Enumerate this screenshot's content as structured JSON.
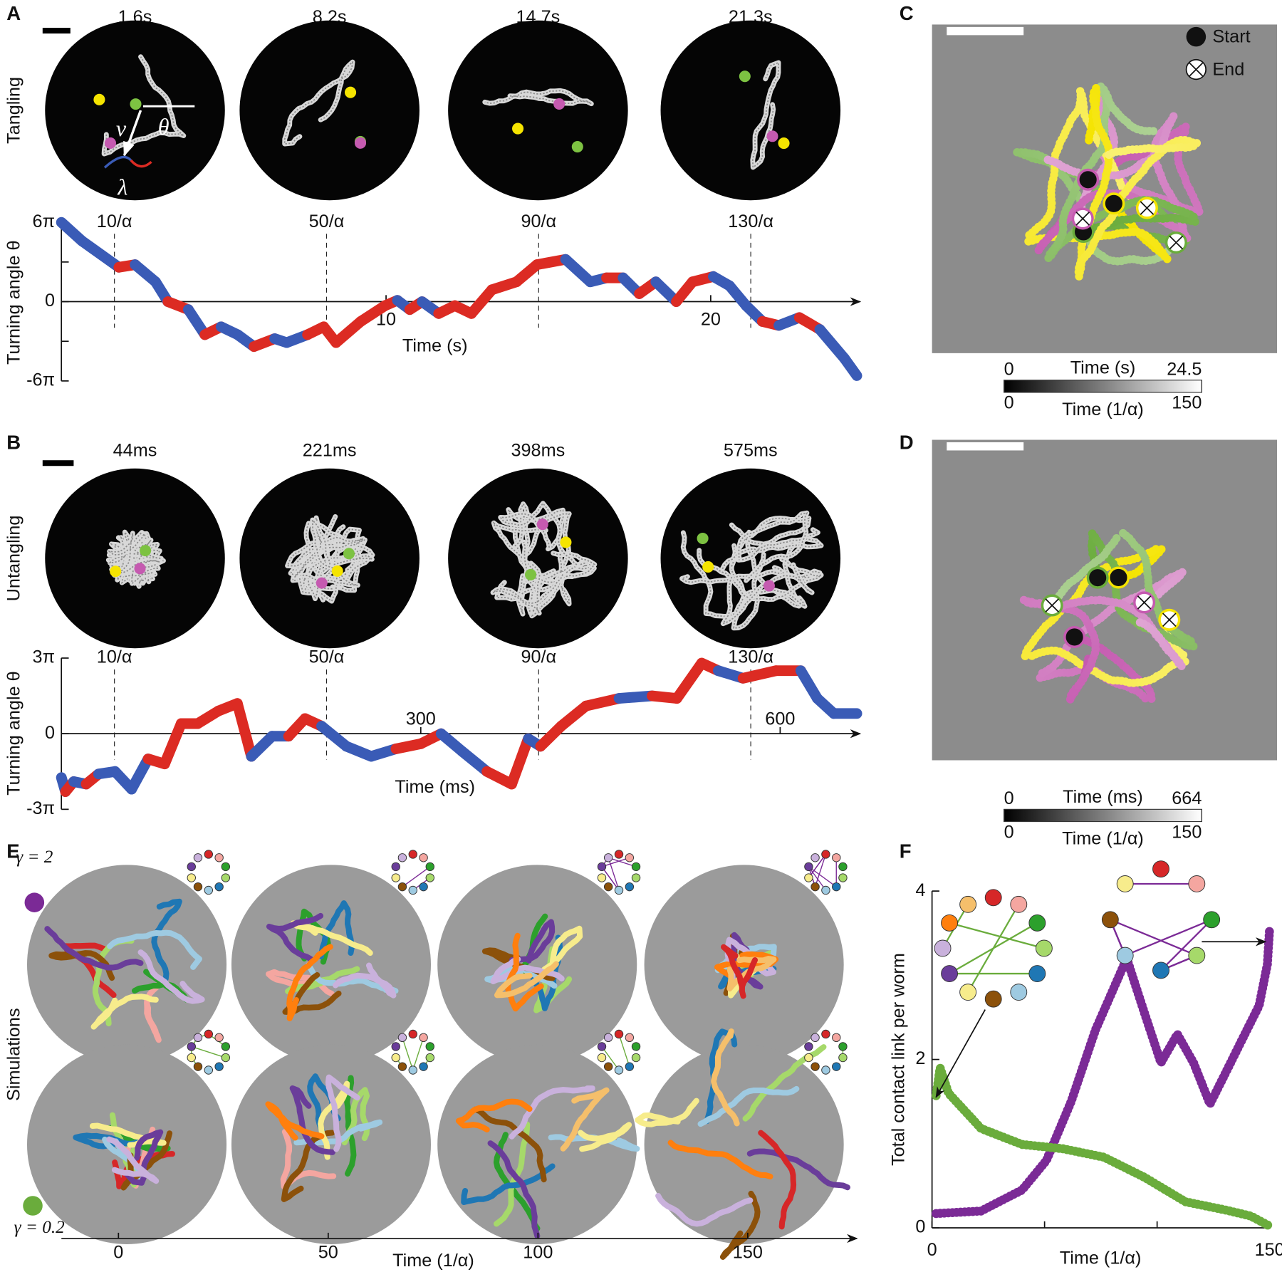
{
  "panel_labels": [
    "A",
    "B",
    "C",
    "D",
    "E",
    "F"
  ],
  "panel_a": {
    "row_label": "Tangling",
    "frame_times": [
      "1.6s",
      "8.2s",
      "14.7s",
      "21.3s"
    ],
    "symbols": [
      "v",
      "θ",
      "λ"
    ]
  },
  "panel_b": {
    "row_label": "Untangling",
    "frame_times": [
      "44ms",
      "221ms",
      "398ms",
      "575ms"
    ]
  },
  "panel_c": {
    "legend": [
      "Start",
      "End"
    ],
    "colorbar": {
      "top_label": "Time (s)",
      "top_ticks": [
        0,
        24.5
      ],
      "bottom_label": "Time (1/α)",
      "bottom_ticks": [
        0,
        150
      ]
    }
  },
  "panel_d": {
    "colorbar": {
      "top_label": "Time (ms)",
      "top_ticks": [
        0,
        664
      ],
      "bottom_label": "Time (1/α)",
      "bottom_ticks": [
        0,
        150
      ]
    }
  },
  "panel_e": {
    "row_label": "Simulations",
    "gamma_labels": [
      "γ = 2",
      "γ = 0.2"
    ],
    "xlabel": "Time (1/α)",
    "xlim": [
      -13.6,
      176
    ],
    "xticks": [
      0,
      50,
      100,
      150
    ]
  },
  "chart_data": [
    {
      "type": "line",
      "xlabel": "Time (s)",
      "ylabel": "Turning angle θ",
      "xlim": [
        0,
        24.5
      ],
      "xticks": [
        10,
        20
      ],
      "ylim": [
        -6,
        6
      ],
      "yticks": [
        {
          "value": -6,
          "label": "-6π"
        },
        0,
        {
          "value": 6,
          "label": "6π"
        }
      ],
      "minor_yticks": [
        -3,
        3
      ],
      "x2lim": [
        0,
        150
      ],
      "x2ticks": [
        {
          "value": 10,
          "label": "10/α"
        },
        {
          "value": 50,
          "label": "50/α"
        },
        {
          "value": 90,
          "label": "90/α"
        },
        {
          "value": 130,
          "label": "130/α"
        }
      ],
      "x": [
        0,
        0.63,
        1.77,
        2.27,
        2.9,
        3.28,
        3.91,
        4.42,
        4.92,
        5.43,
        5.93,
        6.57,
        6.94,
        7.58,
        8.08,
        8.46,
        9.22,
        9.97,
        10.35,
        10.73,
        11.11,
        11.62,
        12.12,
        12.63,
        13.26,
        14.02,
        14.65,
        15.53,
        16.29,
        16.79,
        17.3,
        17.8,
        18.31,
        18.94,
        19.44,
        20.08,
        20.58,
        21.09,
        21.59,
        22.1,
        22.73,
        23.36,
        24.12,
        24.5
      ],
      "series": [
        {
          "values": [
            6.0,
            4.6,
            2.6,
            2.8,
            1.5,
            0,
            -0.6,
            -2.5,
            -1.9,
            -2.5,
            -3.4,
            -2.8,
            -3.1,
            -2.5,
            -1.9,
            -3.1,
            -1.5,
            -0.3,
            0.1,
            -0.6,
            0,
            -0.9,
            -0.3,
            -0.9,
            0.9,
            1.5,
            2.8,
            3.2,
            1.5,
            1.8,
            1.8,
            0.6,
            1.5,
            0,
            1.5,
            1.9,
            1.2,
            -0.3,
            -1.5,
            -1.8,
            -1.2,
            -2.1,
            -4.3,
            -5.6
          ],
          "colors": [
            "#3a5bb6",
            "#3a5bb6",
            "#dc2b23",
            "#3a5bb6",
            "#3a5bb6",
            "#dc2b23",
            "#3a5bb6",
            "#dc2b23",
            "#3a5bb6",
            "#3a5bb6",
            "#dc2b23",
            "#3a5bb6",
            "#3a5bb6",
            "#dc2b23",
            "#dc2b23",
            "#dc2b23",
            "#dc2b23",
            "#dc2b23",
            "#3a5bb6",
            "#dc2b23",
            "#3a5bb6",
            "#dc2b23",
            "#dc2b23",
            "#dc2b23",
            "#dc2b23",
            "#dc2b23",
            "#dc2b23",
            "#3a5bb6",
            "#3a5bb6",
            "#dc2b23",
            "#3a5bb6",
            "#dc2b23",
            "#3a5bb6",
            "#dc2b23",
            "#dc2b23",
            "#3a5bb6",
            "#3a5bb6",
            "#3a5bb6",
            "#dc2b23",
            "#3a5bb6",
            "#dc2b23",
            "#3a5bb6",
            "#3a5bb6",
            "#dc2b23"
          ]
        }
      ]
    },
    {
      "type": "line",
      "xlabel": "Time (ms)",
      "ylabel": "Turning angle θ",
      "xlim": [
        0,
        664
      ],
      "xticks": [
        300,
        600
      ],
      "ylim": [
        -3,
        3
      ],
      "yticks": [
        {
          "value": -3,
          "label": "-3π"
        },
        0,
        {
          "value": 3,
          "label": "3π"
        }
      ],
      "x2lim": [
        0,
        150
      ],
      "x2ticks": [
        {
          "value": 10,
          "label": "10/α"
        },
        {
          "value": 50,
          "label": "50/α"
        },
        {
          "value": 90,
          "label": "90/α"
        },
        {
          "value": 130,
          "label": "130/α"
        }
      ],
      "x": [
        0,
        3.4,
        10.3,
        20.7,
        31,
        44.8,
        58.6,
        72.4,
        86.2,
        100,
        113.8,
        131,
        146.9,
        158.6,
        175.9,
        189.7,
        203.4,
        217.2,
        237.9,
        258.6,
        279.3,
        300,
        317,
        334.5,
        355.2,
        375.9,
        389.7,
        400,
        417.2,
        437.9,
        465.5,
        493.1,
        513.8,
        534.5,
        548.3,
        569,
        596.6,
        617.2,
        631,
        644.8,
        664
      ],
      "series": [
        {
          "values": [
            -1.74,
            -2.3,
            -1.9,
            -2.0,
            -1.6,
            -1.5,
            -2.2,
            -1.0,
            -1.2,
            0.4,
            0.4,
            0.9,
            1.2,
            -0.9,
            -0.1,
            -0.1,
            0.6,
            0.3,
            -0.5,
            -0.9,
            -0.6,
            -0.4,
            0,
            -0.7,
            -1.5,
            -2.0,
            -0.2,
            -0.5,
            0.3,
            1.1,
            1.4,
            1.5,
            1.4,
            2.8,
            2.5,
            2.2,
            2.5,
            2.5,
            1.4,
            0.8,
            0.8
          ],
          "colors": [
            "#3a5bb6",
            "#dc2b23",
            "#3a5bb6",
            "#dc2b23",
            "#3a5bb6",
            "#3a5bb6",
            "#3a5bb6",
            "#dc2b23",
            "#dc2b23",
            "#dc2b23",
            "#dc2b23",
            "#dc2b23",
            "#dc2b23",
            "#3a5bb6",
            "#3a5bb6",
            "#dc2b23",
            "#dc2b23",
            "#3a5bb6",
            "#3a5bb6",
            "#3a5bb6",
            "#dc2b23",
            "#dc2b23",
            "#3a5bb6",
            "#3a5bb6",
            "#dc2b23",
            "#dc2b23",
            "#3a5bb6",
            "#dc2b23",
            "#dc2b23",
            "#dc2b23",
            "#3a5bb6",
            "#dc2b23",
            "#dc2b23",
            "#dc2b23",
            "#3a5bb6",
            "#dc2b23",
            "#dc2b23",
            "#3a5bb6",
            "#3a5bb6",
            "#3a5bb6",
            "#dc2b23"
          ]
        }
      ]
    },
    {
      "type": "line",
      "xlabel": "Time (1/α)",
      "ylabel": "Total contact link per worm",
      "xlim": [
        0,
        150
      ],
      "xticks": [
        0,
        150
      ],
      "minor_xticks": [
        50,
        100
      ],
      "ylim": [
        0,
        4
      ],
      "yticks": [
        0,
        2,
        4
      ],
      "series": [
        {
          "color": "#7b2a96",
          "x": [
            1.8,
            21.8,
            40,
            50.8,
            61.8,
            72.6,
            86.5,
            94.4,
            101.7,
            109,
            116.2,
            123.5,
            130.8,
            138,
            145.3,
            149,
            150
          ],
          "values": [
            0.17,
            0.2,
            0.45,
            0.8,
            1.5,
            2.35,
            3.2,
            2.55,
            1.96,
            2.3,
            1.96,
            1.47,
            1.86,
            2.25,
            2.64,
            3.13,
            3.56
          ]
        },
        {
          "color": "#6aac3c",
          "x": [
            1.8,
            3.6,
            7.3,
            21.8,
            40,
            58.1,
            76.3,
            94.4,
            112.6,
            130.8,
            141.7,
            150
          ],
          "values": [
            1.57,
            1.9,
            1.6,
            1.18,
            0.99,
            0.94,
            0.84,
            0.6,
            0.31,
            0.21,
            0.14,
            0.02
          ]
        }
      ]
    }
  ]
}
